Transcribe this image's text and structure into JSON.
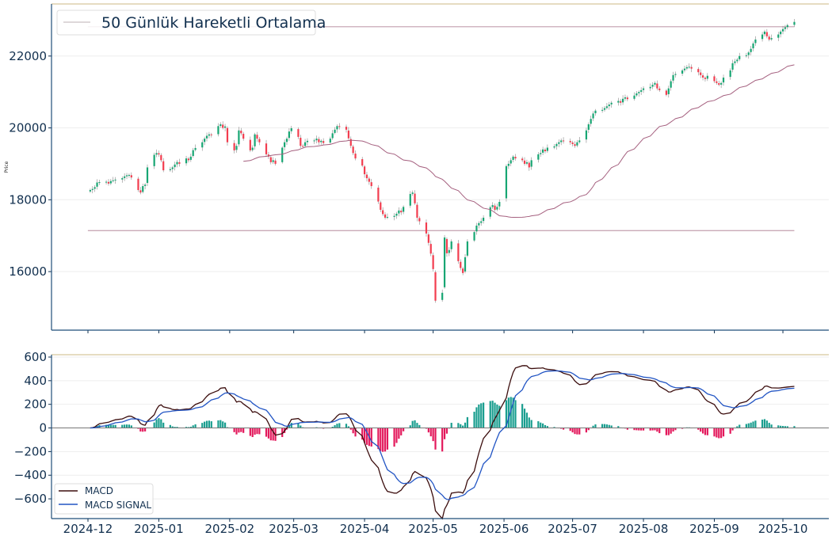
{
  "chart_data": [
    {
      "type": "candlestick",
      "ylabel": "Price",
      "ylim": [
        14370,
        23450
      ],
      "yticks": [
        16000,
        18000,
        20000,
        22000
      ],
      "legend": {
        "label": "50 Günlük Hareketli Ortalama",
        "placement": "top-left"
      },
      "ma_period": 50,
      "horizontal_lines": [
        22816,
        17140
      ],
      "start_date": "2024-12-02",
      "weekday_closes": [
        18270,
        18300,
        18350,
        18480,
        18490,
        18500,
        18450,
        18520,
        18540,
        18560,
        18600,
        18650,
        18680,
        18690,
        18620,
        18270,
        18200,
        18380,
        18420,
        18900,
        19250,
        19300,
        19260,
        19100,
        18820,
        18850,
        18900,
        18980,
        19050,
        19000,
        19150,
        19100,
        19200,
        19380,
        19440,
        19600,
        19700,
        19780,
        19820,
        19800,
        20050,
        20100,
        20000,
        20040,
        19600,
        19375,
        19500,
        19930,
        19850,
        19700,
        19375,
        19450,
        19820,
        19700,
        19600,
        19265,
        19200,
        19045,
        19100,
        19000,
        19450,
        19600,
        19700,
        19900,
        19990,
        19750,
        19500,
        19485,
        19600,
        19640,
        19650,
        19700,
        19600,
        19640,
        19580,
        19700,
        19850,
        19950,
        20050,
        20040,
        19950,
        19710,
        19500,
        19300,
        19150,
        18950,
        18710,
        18600,
        18500,
        18380,
        17950,
        17720,
        17600,
        17500,
        17520,
        17550,
        17610,
        17700,
        17650,
        17800,
        18160,
        18200,
        17900,
        17500,
        17400,
        17060,
        16800,
        16500,
        16070,
        15190,
        15410,
        16950,
        16510,
        16600,
        16840,
        16290,
        16100,
        15960,
        16400,
        16840,
        17100,
        17280,
        17350,
        17400,
        17500,
        17790,
        17850,
        17720,
        17800,
        17940,
        18935,
        19000,
        19100,
        19200,
        19150,
        19100,
        19000,
        19045,
        18900,
        19100,
        19265,
        19300,
        19400,
        19350,
        19450,
        19485,
        19550,
        19600,
        19650,
        19640,
        19600,
        19550,
        19500,
        19600,
        19650,
        19930,
        20100,
        20250,
        20400,
        20480,
        20500,
        20550,
        20600,
        20650,
        20700,
        20750,
        20700,
        20810,
        20850,
        20800,
        20900,
        20960,
        21000,
        21050,
        21100,
        21140,
        21200,
        21250,
        21100,
        21050,
        20920,
        21100,
        21300,
        21470,
        21500,
        21600,
        21650,
        21690,
        21700,
        21650,
        21550,
        21470,
        21400,
        21360,
        21450,
        21300,
        21250,
        21200,
        21250,
        21400,
        21600,
        21800,
        21850,
        21900,
        22000,
        22020,
        22100,
        22200,
        22350,
        22460,
        22600,
        22680,
        22550,
        22460,
        22500,
        22600,
        22680,
        22750,
        22800,
        22860,
        22950
      ],
      "colors": {
        "up": "#17a673",
        "down": "#f23d4f",
        "ma": "#a5607f",
        "hline": "#c9a9b6"
      }
    },
    {
      "type": "line+bar",
      "ylim": [
        -767,
        620
      ],
      "yticks": [
        -600,
        -400,
        -200,
        0,
        200,
        400,
        600
      ],
      "series": [
        {
          "name": "MACD",
          "color": "#3b0d0d"
        },
        {
          "name": "MACD SIGNAL",
          "color": "#2255c4"
        }
      ],
      "histogram_colors": {
        "positive": "#1a9e8f",
        "negative": "#e3195c"
      },
      "legend_placement": "bottom-left"
    }
  ],
  "x_axis": {
    "ticks": [
      {
        "label": "2024-12",
        "date": "2024-12-01"
      },
      {
        "label": "2025-01",
        "date": "2025-01-01"
      },
      {
        "label": "2025-02",
        "date": "2025-02-01"
      },
      {
        "label": "2025-03",
        "date": "2025-03-01"
      },
      {
        "label": "2025-04",
        "date": "2025-04-01"
      },
      {
        "label": "2025-05",
        "date": "2025-05-01"
      },
      {
        "label": "2025-06",
        "date": "2025-06-01"
      },
      {
        "label": "2025-07",
        "date": "2025-07-01"
      },
      {
        "label": "2025-08",
        "date": "2025-08-01"
      },
      {
        "label": "2025-09",
        "date": "2025-09-01"
      },
      {
        "label": "2025-10",
        "date": "2025-10-01"
      }
    ]
  }
}
